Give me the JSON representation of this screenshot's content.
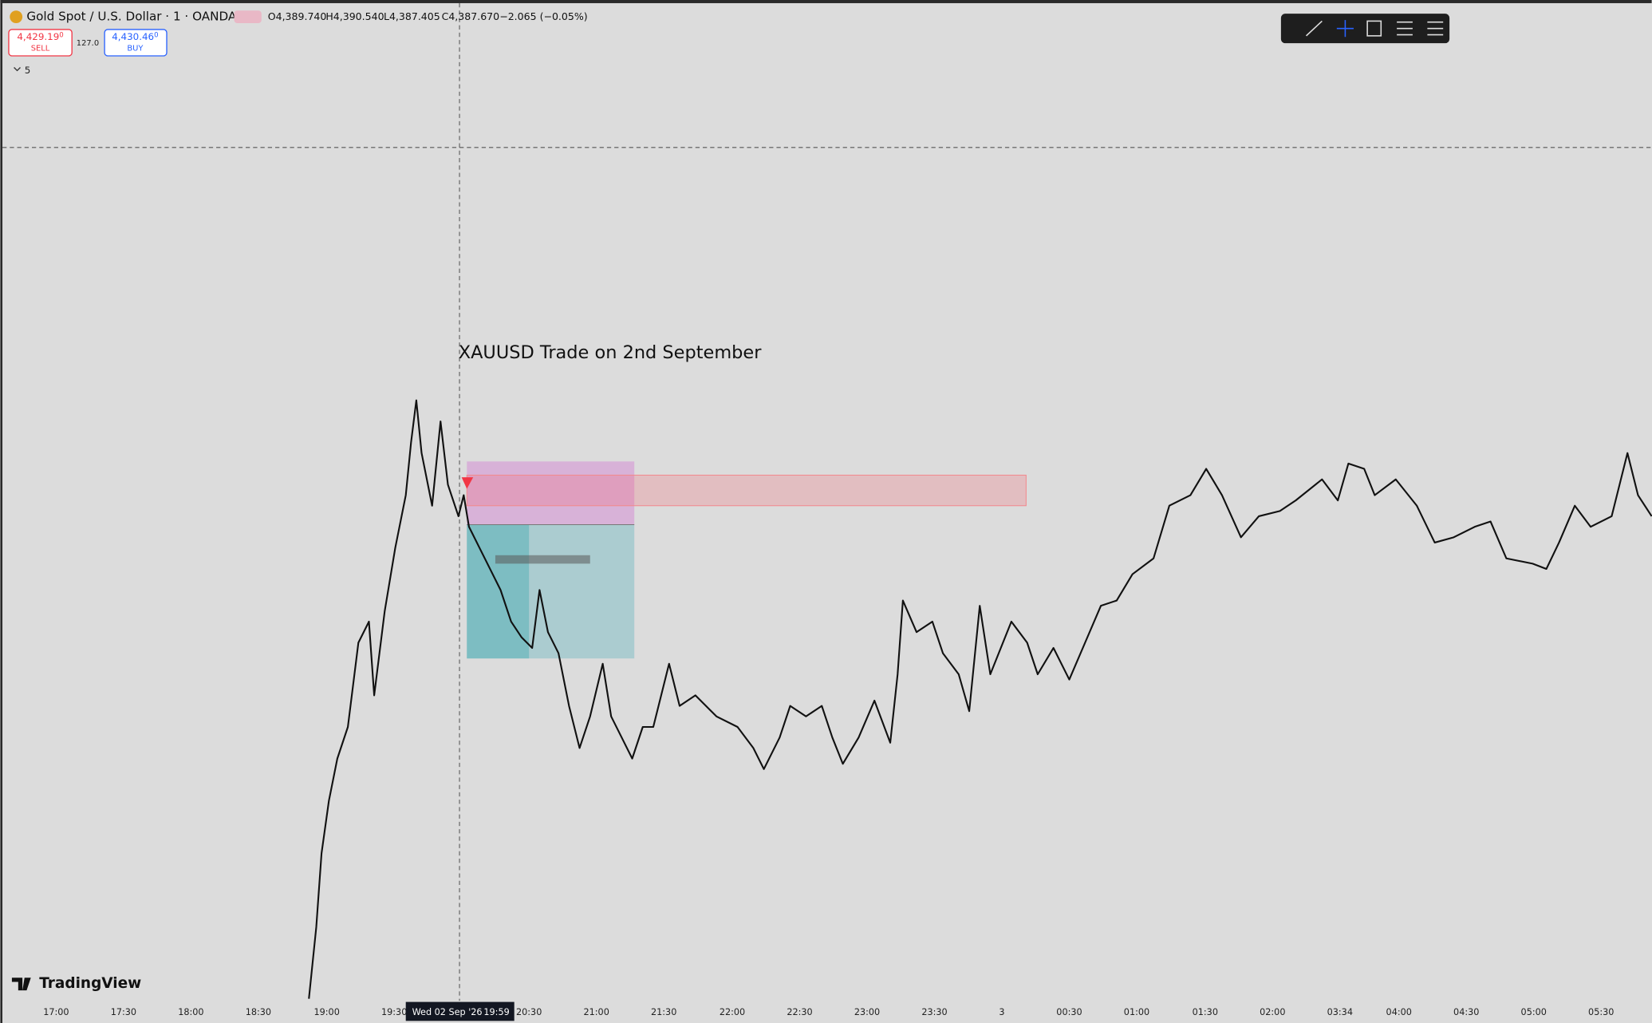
{
  "header": {
    "symbol": "Gold Spot / U.S. Dollar · 1 · OANDA",
    "open": "O4,389.740",
    "high": "H4,390.540",
    "low": "L4,387.405",
    "close": "C4,387.670",
    "change": "−2.065 (−0.05%)"
  },
  "trade": {
    "sell": {
      "price": "4,429.19",
      "price_sup": "0",
      "label": "SELL"
    },
    "spread": "127.0",
    "buy": {
      "price": "4,430.46",
      "price_sup": "0",
      "label": "BUY"
    }
  },
  "indicators": {
    "count": "5"
  },
  "annotation": "XAUUSD Trade on 2nd September",
  "crosshair": {
    "date": "Wed 02 Sep '26",
    "time": "19:59"
  },
  "time_axis": [
    "17:00",
    "17:30",
    "18:00",
    "18:30",
    "19:00",
    "19:30",
    "20:30",
    "21:00",
    "21:30",
    "22:00",
    "22:30",
    "23:00",
    "23:30",
    "3",
    "00:30",
    "01:00",
    "01:30",
    "02:00",
    "03:34",
    "04:00",
    "04:30",
    "05:00",
    "05:30"
  ],
  "logo": "TradingView"
}
